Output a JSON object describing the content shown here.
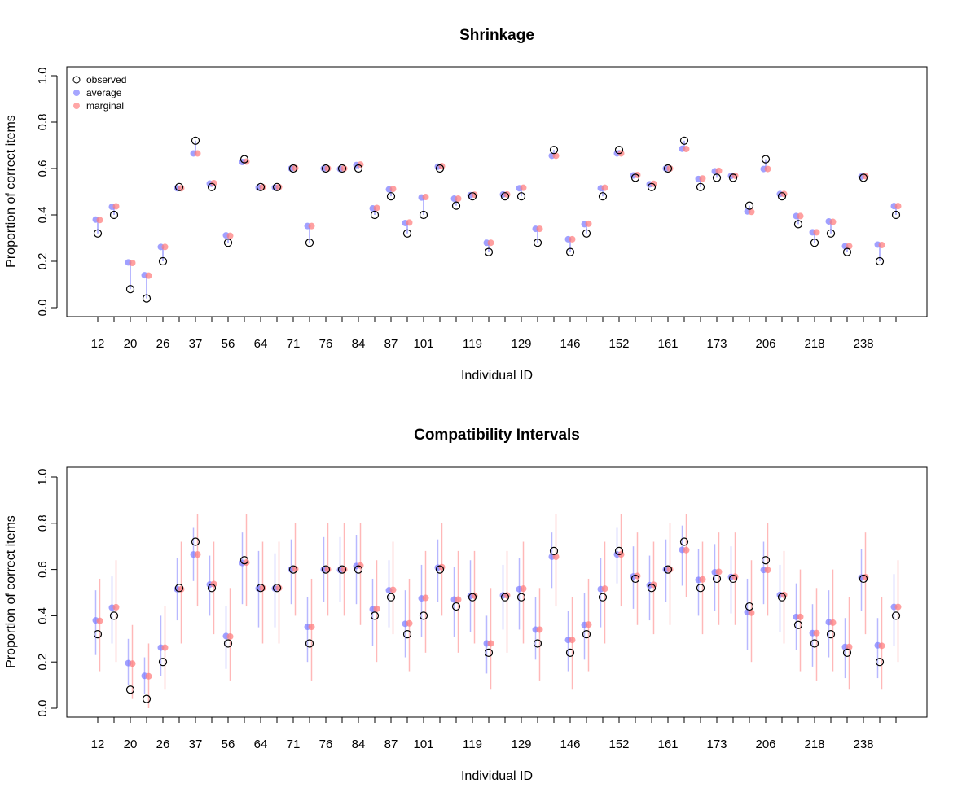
{
  "chart_data": [
    {
      "type": "scatter",
      "title": "Shrinkage",
      "xlabel": "Individual ID",
      "ylabel": "Proportion of correct items",
      "ylim": [
        0,
        1
      ],
      "yticks": [
        "0.0",
        "0.2",
        "0.4",
        "0.6",
        "0.8",
        "1.0"
      ],
      "xlim": [
        0.5,
        50.5
      ],
      "x_tick_labels": [
        {
          "index": 1,
          "label": "12"
        },
        {
          "index": 3,
          "label": "20"
        },
        {
          "index": 5,
          "label": "26"
        },
        {
          "index": 7,
          "label": "37"
        },
        {
          "index": 9,
          "label": "56"
        },
        {
          "index": 11,
          "label": "64"
        },
        {
          "index": 13,
          "label": "71"
        },
        {
          "index": 15,
          "label": "76"
        },
        {
          "index": 17,
          "label": "84"
        },
        {
          "index": 19,
          "label": "87"
        },
        {
          "index": 21,
          "label": "101"
        },
        {
          "index": 24,
          "label": "119"
        },
        {
          "index": 27,
          "label": "129"
        },
        {
          "index": 30,
          "label": "146"
        },
        {
          "index": 33,
          "label": "152"
        },
        {
          "index": 36,
          "label": "161"
        },
        {
          "index": 39,
          "label": "173"
        },
        {
          "index": 42,
          "label": "206"
        },
        {
          "index": 45,
          "label": "218"
        },
        {
          "index": 48,
          "label": "238"
        }
      ],
      "legend": {
        "position": "top-left",
        "entries": [
          {
            "label": "observed",
            "color": "#000000",
            "style": "open-circle"
          },
          {
            "label": "average",
            "color": "#8080ff",
            "style": "filled-circle"
          },
          {
            "label": "marginal",
            "color": "#ff8080",
            "style": "filled-circle"
          }
        ]
      },
      "colors": {
        "observed": "#000000",
        "average": "#8080ff",
        "marginal": "#ff8080",
        "average_line": "#a0a0ff"
      },
      "observed": [
        0.32,
        0.4,
        0.08,
        0.04,
        0.2,
        0.52,
        0.72,
        0.52,
        0.28,
        0.64,
        0.52,
        0.52,
        0.6,
        0.28,
        0.6,
        0.6,
        0.6,
        0.4,
        0.48,
        0.32,
        0.4,
        0.6,
        0.44,
        0.48,
        0.24,
        0.48,
        0.48,
        0.28,
        0.68,
        0.24,
        0.32,
        0.48,
        0.68,
        0.56,
        0.52,
        0.6,
        0.72,
        0.52,
        0.56,
        0.56,
        0.44,
        0.64,
        0.48,
        0.36,
        0.28,
        0.32,
        0.24,
        0.56,
        0.2,
        0.4
      ],
      "average": [
        0.38,
        0.435,
        0.195,
        0.14,
        0.262,
        0.515,
        0.665,
        0.535,
        0.312,
        0.628,
        0.518,
        0.518,
        0.6,
        0.352,
        0.6,
        0.598,
        0.615,
        0.428,
        0.51,
        0.365,
        0.475,
        0.608,
        0.47,
        0.485,
        0.28,
        0.488,
        0.515,
        0.34,
        0.655,
        0.295,
        0.36,
        0.515,
        0.665,
        0.57,
        0.532,
        0.6,
        0.685,
        0.555,
        0.588,
        0.568,
        0.415,
        0.598,
        0.49,
        0.395,
        0.325,
        0.372,
        0.265,
        0.565,
        0.272,
        0.438
      ],
      "marginal": [
        0.378,
        0.437,
        0.193,
        0.138,
        0.262,
        0.515,
        0.665,
        0.537,
        0.31,
        0.63,
        0.52,
        0.52,
        0.602,
        0.352,
        0.6,
        0.6,
        0.617,
        0.43,
        0.512,
        0.367,
        0.477,
        0.61,
        0.47,
        0.487,
        0.28,
        0.488,
        0.517,
        0.34,
        0.655,
        0.295,
        0.362,
        0.517,
        0.665,
        0.572,
        0.534,
        0.6,
        0.684,
        0.557,
        0.59,
        0.569,
        0.413,
        0.598,
        0.49,
        0.395,
        0.325,
        0.37,
        0.265,
        0.567,
        0.27,
        0.438
      ]
    },
    {
      "type": "scatter",
      "title": "Compatibility Intervals",
      "xlabel": "Individual ID",
      "ylabel": "Proportion of correct items",
      "ylim": [
        0,
        1
      ],
      "yticks": [
        "0.0",
        "0.2",
        "0.4",
        "0.6",
        "0.8",
        "1.0"
      ],
      "xlim": [
        0.5,
        50.5
      ],
      "colors": {
        "observed": "#000000",
        "average": "#8080ff",
        "marginal": "#ff8080",
        "average_interval": "#b8b8ff",
        "marginal_interval": "#ffb8b8"
      },
      "average_interval_lower": [
        0.23,
        0.28,
        0.1,
        0.06,
        0.14,
        0.38,
        0.55,
        0.4,
        0.17,
        0.45,
        0.35,
        0.35,
        0.45,
        0.2,
        0.46,
        0.46,
        0.45,
        0.27,
        0.35,
        0.22,
        0.31,
        0.46,
        0.31,
        0.33,
        0.15,
        0.34,
        0.34,
        0.21,
        0.52,
        0.16,
        0.21,
        0.35,
        0.54,
        0.43,
        0.38,
        0.46,
        0.53,
        0.4,
        0.42,
        0.41,
        0.25,
        0.45,
        0.33,
        0.25,
        0.18,
        0.22,
        0.13,
        0.42,
        0.13,
        0.27
      ],
      "average_interval_upper": [
        0.51,
        0.57,
        0.3,
        0.22,
        0.4,
        0.65,
        0.78,
        0.66,
        0.44,
        0.76,
        0.68,
        0.67,
        0.73,
        0.48,
        0.74,
        0.74,
        0.75,
        0.56,
        0.64,
        0.51,
        0.62,
        0.73,
        0.61,
        0.64,
        0.4,
        0.62,
        0.65,
        0.48,
        0.76,
        0.42,
        0.5,
        0.65,
        0.78,
        0.7,
        0.66,
        0.73,
        0.79,
        0.69,
        0.71,
        0.7,
        0.56,
        0.72,
        0.62,
        0.54,
        0.45,
        0.51,
        0.39,
        0.69,
        0.39,
        0.58
      ],
      "marginal_interval_lower": [
        0.16,
        0.2,
        0.04,
        0.0,
        0.08,
        0.28,
        0.44,
        0.32,
        0.12,
        0.44,
        0.28,
        0.28,
        0.4,
        0.12,
        0.4,
        0.4,
        0.36,
        0.2,
        0.32,
        0.16,
        0.24,
        0.4,
        0.24,
        0.28,
        0.08,
        0.24,
        0.28,
        0.12,
        0.44,
        0.08,
        0.16,
        0.28,
        0.44,
        0.36,
        0.32,
        0.36,
        0.48,
        0.32,
        0.36,
        0.36,
        0.2,
        0.4,
        0.28,
        0.16,
        0.12,
        0.16,
        0.08,
        0.32,
        0.08,
        0.2
      ],
      "marginal_interval_upper": [
        0.56,
        0.64,
        0.36,
        0.28,
        0.44,
        0.72,
        0.84,
        0.72,
        0.52,
        0.84,
        0.72,
        0.72,
        0.8,
        0.56,
        0.8,
        0.8,
        0.8,
        0.64,
        0.72,
        0.56,
        0.68,
        0.8,
        0.68,
        0.68,
        0.52,
        0.68,
        0.72,
        0.52,
        0.84,
        0.48,
        0.56,
        0.72,
        0.84,
        0.76,
        0.72,
        0.8,
        0.84,
        0.72,
        0.76,
        0.76,
        0.64,
        0.8,
        0.68,
        0.6,
        0.52,
        0.6,
        0.48,
        0.76,
        0.48,
        0.64
      ]
    }
  ]
}
